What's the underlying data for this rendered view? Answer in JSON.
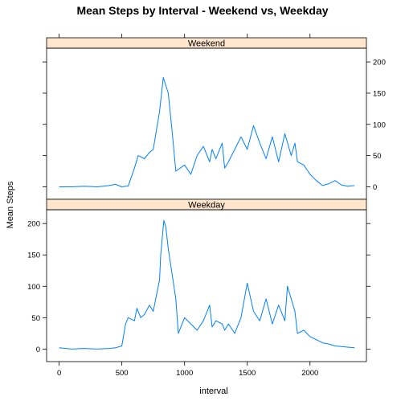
{
  "chart_data": {
    "type": "line",
    "title": "Mean Steps by Interval - Weekend vs, Weekday",
    "xlabel": "interval",
    "ylabel": "Mean Steps",
    "xlim": [
      -100,
      2450
    ],
    "ylim": [
      -20,
      222
    ],
    "x_ticks": [
      0,
      500,
      1000,
      1500,
      2000
    ],
    "y_ticks": [
      0,
      50,
      100,
      150,
      200
    ],
    "line_color": "#0080FF",
    "strip_color": "#FFE5CC",
    "grid": false,
    "legend": "none",
    "panels": [
      {
        "name": "Weekend",
        "axis_side": "right",
        "series": [
          {
            "x": [
              0,
              100,
              200,
              300,
              400,
              450,
              500,
              530,
              550,
              600,
              630,
              680,
              720,
              750,
              800,
              830,
              870,
              900,
              930,
              1000,
              1050,
              1100,
              1150,
              1200,
              1220,
              1250,
              1300,
              1320,
              1350,
              1400,
              1450,
              1500,
              1550,
              1600,
              1650,
              1700,
              1750,
              1800,
              1850,
              1880,
              1900,
              1950,
              2000,
              2050,
              2100,
              2150,
              2200,
              2250,
              2300,
              2355
            ],
            "y": [
              0,
              0,
              1,
              0,
              2,
              4,
              0,
              1,
              1,
              30,
              50,
              45,
              55,
              60,
              120,
              175,
              150,
              90,
              25,
              35,
              20,
              50,
              65,
              40,
              60,
              45,
              70,
              30,
              40,
              60,
              80,
              60,
              98,
              70,
              45,
              80,
              40,
              85,
              50,
              70,
              40,
              35,
              20,
              10,
              2,
              5,
              10,
              3,
              1,
              2
            ]
          }
        ]
      },
      {
        "name": "Weekday",
        "axis_side": "left",
        "series": [
          {
            "x": [
              0,
              100,
              200,
              300,
              400,
              450,
              500,
              530,
              550,
              600,
              620,
              650,
              680,
              720,
              750,
              800,
              810,
              835,
              850,
              870,
              900,
              930,
              950,
              1000,
              1050,
              1100,
              1150,
              1200,
              1220,
              1250,
              1300,
              1320,
              1350,
              1400,
              1450,
              1500,
              1550,
              1600,
              1650,
              1700,
              1750,
              1800,
              1820,
              1850,
              1880,
              1900,
              1950,
              2000,
              2050,
              2100,
              2150,
              2200,
              2250,
              2300,
              2355
            ],
            "y": [
              2,
              0,
              1,
              0,
              1,
              2,
              5,
              40,
              50,
              45,
              65,
              50,
              55,
              70,
              60,
              110,
              150,
              205,
              195,
              160,
              120,
              80,
              25,
              50,
              40,
              30,
              45,
              70,
              35,
              45,
              40,
              30,
              40,
              25,
              50,
              105,
              60,
              45,
              80,
              40,
              70,
              45,
              100,
              80,
              60,
              25,
              30,
              20,
              15,
              10,
              8,
              5,
              4,
              3,
              2
            ]
          }
        ]
      }
    ]
  }
}
